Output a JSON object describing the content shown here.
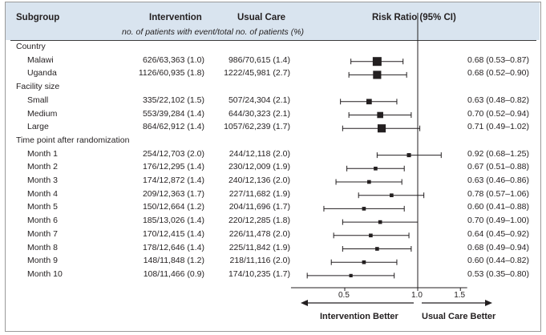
{
  "header": {
    "subgroup": "Subgroup",
    "intervention": "Intervention",
    "usual_care": "Usual Care",
    "risk_ratio": "Risk Ratio (95% CI)",
    "subtitle": "no. of patients with event/total no. of patients (%)"
  },
  "colors": {
    "header_band": "#d9e4ef",
    "ink": "#231f20"
  },
  "chart_data": {
    "type": "forest",
    "title": "",
    "x_scale": "log",
    "xlim": [
      0.3,
      1.6
    ],
    "x_ticks": [
      0.5,
      1.0,
      1.5
    ],
    "x_tick_labels": [
      "0.5",
      "1.0",
      "1.5"
    ],
    "reference_line": 1.0,
    "xlabel_left": "Intervention Better",
    "xlabel_right": "Usual Care Better",
    "groups": [
      {
        "name": "Country",
        "rows": [
          {
            "label": "Malawi",
            "intervention": "626/63,363 (1.0)",
            "usual_care": "986/70,615 (1.4)",
            "rr": 0.68,
            "lo": 0.53,
            "hi": 0.87,
            "ci_text": "0.68 (0.53–0.87)",
            "weight": 1.0
          },
          {
            "label": "Uganda",
            "intervention": "1126/60,935 (1.8)",
            "usual_care": "1222/45,981 (2.7)",
            "rr": 0.68,
            "lo": 0.52,
            "hi": 0.9,
            "ci_text": "0.68 (0.52–0.90)",
            "weight": 0.9
          }
        ]
      },
      {
        "name": "Facility size",
        "rows": [
          {
            "label": "Small",
            "intervention": "335/22,102 (1.5)",
            "usual_care": "507/24,304 (2.1)",
            "rr": 0.63,
            "lo": 0.48,
            "hi": 0.82,
            "ci_text": "0.63 (0.48–0.82)",
            "weight": 0.5
          },
          {
            "label": "Medium",
            "intervention": "553/39,284 (1.4)",
            "usual_care": "644/30,323 (2.1)",
            "rr": 0.7,
            "lo": 0.52,
            "hi": 0.94,
            "ci_text": "0.70 (0.52–0.94)",
            "weight": 0.6
          },
          {
            "label": "Large",
            "intervention": "864/62,912 (1.4)",
            "usual_care": "1057/62,239 (1.7)",
            "rr": 0.71,
            "lo": 0.49,
            "hi": 1.02,
            "ci_text": "0.71 (0.49–1.02)",
            "weight": 0.9
          }
        ]
      },
      {
        "name": "Time point after randomization",
        "rows": [
          {
            "label": "Month 1",
            "intervention": "254/12,703 (2.0)",
            "usual_care": "244/12,118 (2.0)",
            "rr": 0.92,
            "lo": 0.68,
            "hi": 1.25,
            "ci_text": "0.92 (0.68–1.25)",
            "weight": 0.3
          },
          {
            "label": "Month 2",
            "intervention": "176/12,295 (1.4)",
            "usual_care": "230/12,009 (1.9)",
            "rr": 0.67,
            "lo": 0.51,
            "hi": 0.88,
            "ci_text": "0.67 (0.51–0.88)",
            "weight": 0.25
          },
          {
            "label": "Month 3",
            "intervention": "174/12,872 (1.4)",
            "usual_care": "240/12,136 (2.0)",
            "rr": 0.63,
            "lo": 0.46,
            "hi": 0.86,
            "ci_text": "0.63 (0.46–0.86)",
            "weight": 0.25
          },
          {
            "label": "Month 4",
            "intervention": "209/12,363 (1.7)",
            "usual_care": "227/11,682 (1.9)",
            "rr": 0.78,
            "lo": 0.57,
            "hi": 1.06,
            "ci_text": "0.78 (0.57–1.06)",
            "weight": 0.25
          },
          {
            "label": "Month 5",
            "intervention": "150/12,664 (1.2)",
            "usual_care": "204/11,696 (1.7)",
            "rr": 0.6,
            "lo": 0.41,
            "hi": 0.88,
            "ci_text": "0.60 (0.41–0.88)",
            "weight": 0.25
          },
          {
            "label": "Month 6",
            "intervention": "185/13,026 (1.4)",
            "usual_care": "220/12,285 (1.8)",
            "rr": 0.7,
            "lo": 0.49,
            "hi": 1.0,
            "ci_text": "0.70 (0.49–1.00)",
            "weight": 0.25
          },
          {
            "label": "Month 7",
            "intervention": "170/12,415 (1.4)",
            "usual_care": "226/11,478 (2.0)",
            "rr": 0.64,
            "lo": 0.45,
            "hi": 0.92,
            "ci_text": "0.64 (0.45–0.92)",
            "weight": 0.25
          },
          {
            "label": "Month 8",
            "intervention": "178/12,646 (1.4)",
            "usual_care": "225/11,842 (1.9)",
            "rr": 0.68,
            "lo": 0.49,
            "hi": 0.94,
            "ci_text": "0.68 (0.49–0.94)",
            "weight": 0.25
          },
          {
            "label": "Month 9",
            "intervention": "148/11,848 (1.2)",
            "usual_care": "218/11,116 (2.0)",
            "rr": 0.6,
            "lo": 0.44,
            "hi": 0.82,
            "ci_text": "0.60 (0.44–0.82)",
            "weight": 0.25
          },
          {
            "label": "Month 10",
            "intervention": "108/11,466 (0.9)",
            "usual_care": "174/10,235 (1.7)",
            "rr": 0.53,
            "lo": 0.35,
            "hi": 0.8,
            "ci_text": "0.53 (0.35–0.80)",
            "weight": 0.2
          }
        ]
      }
    ]
  }
}
